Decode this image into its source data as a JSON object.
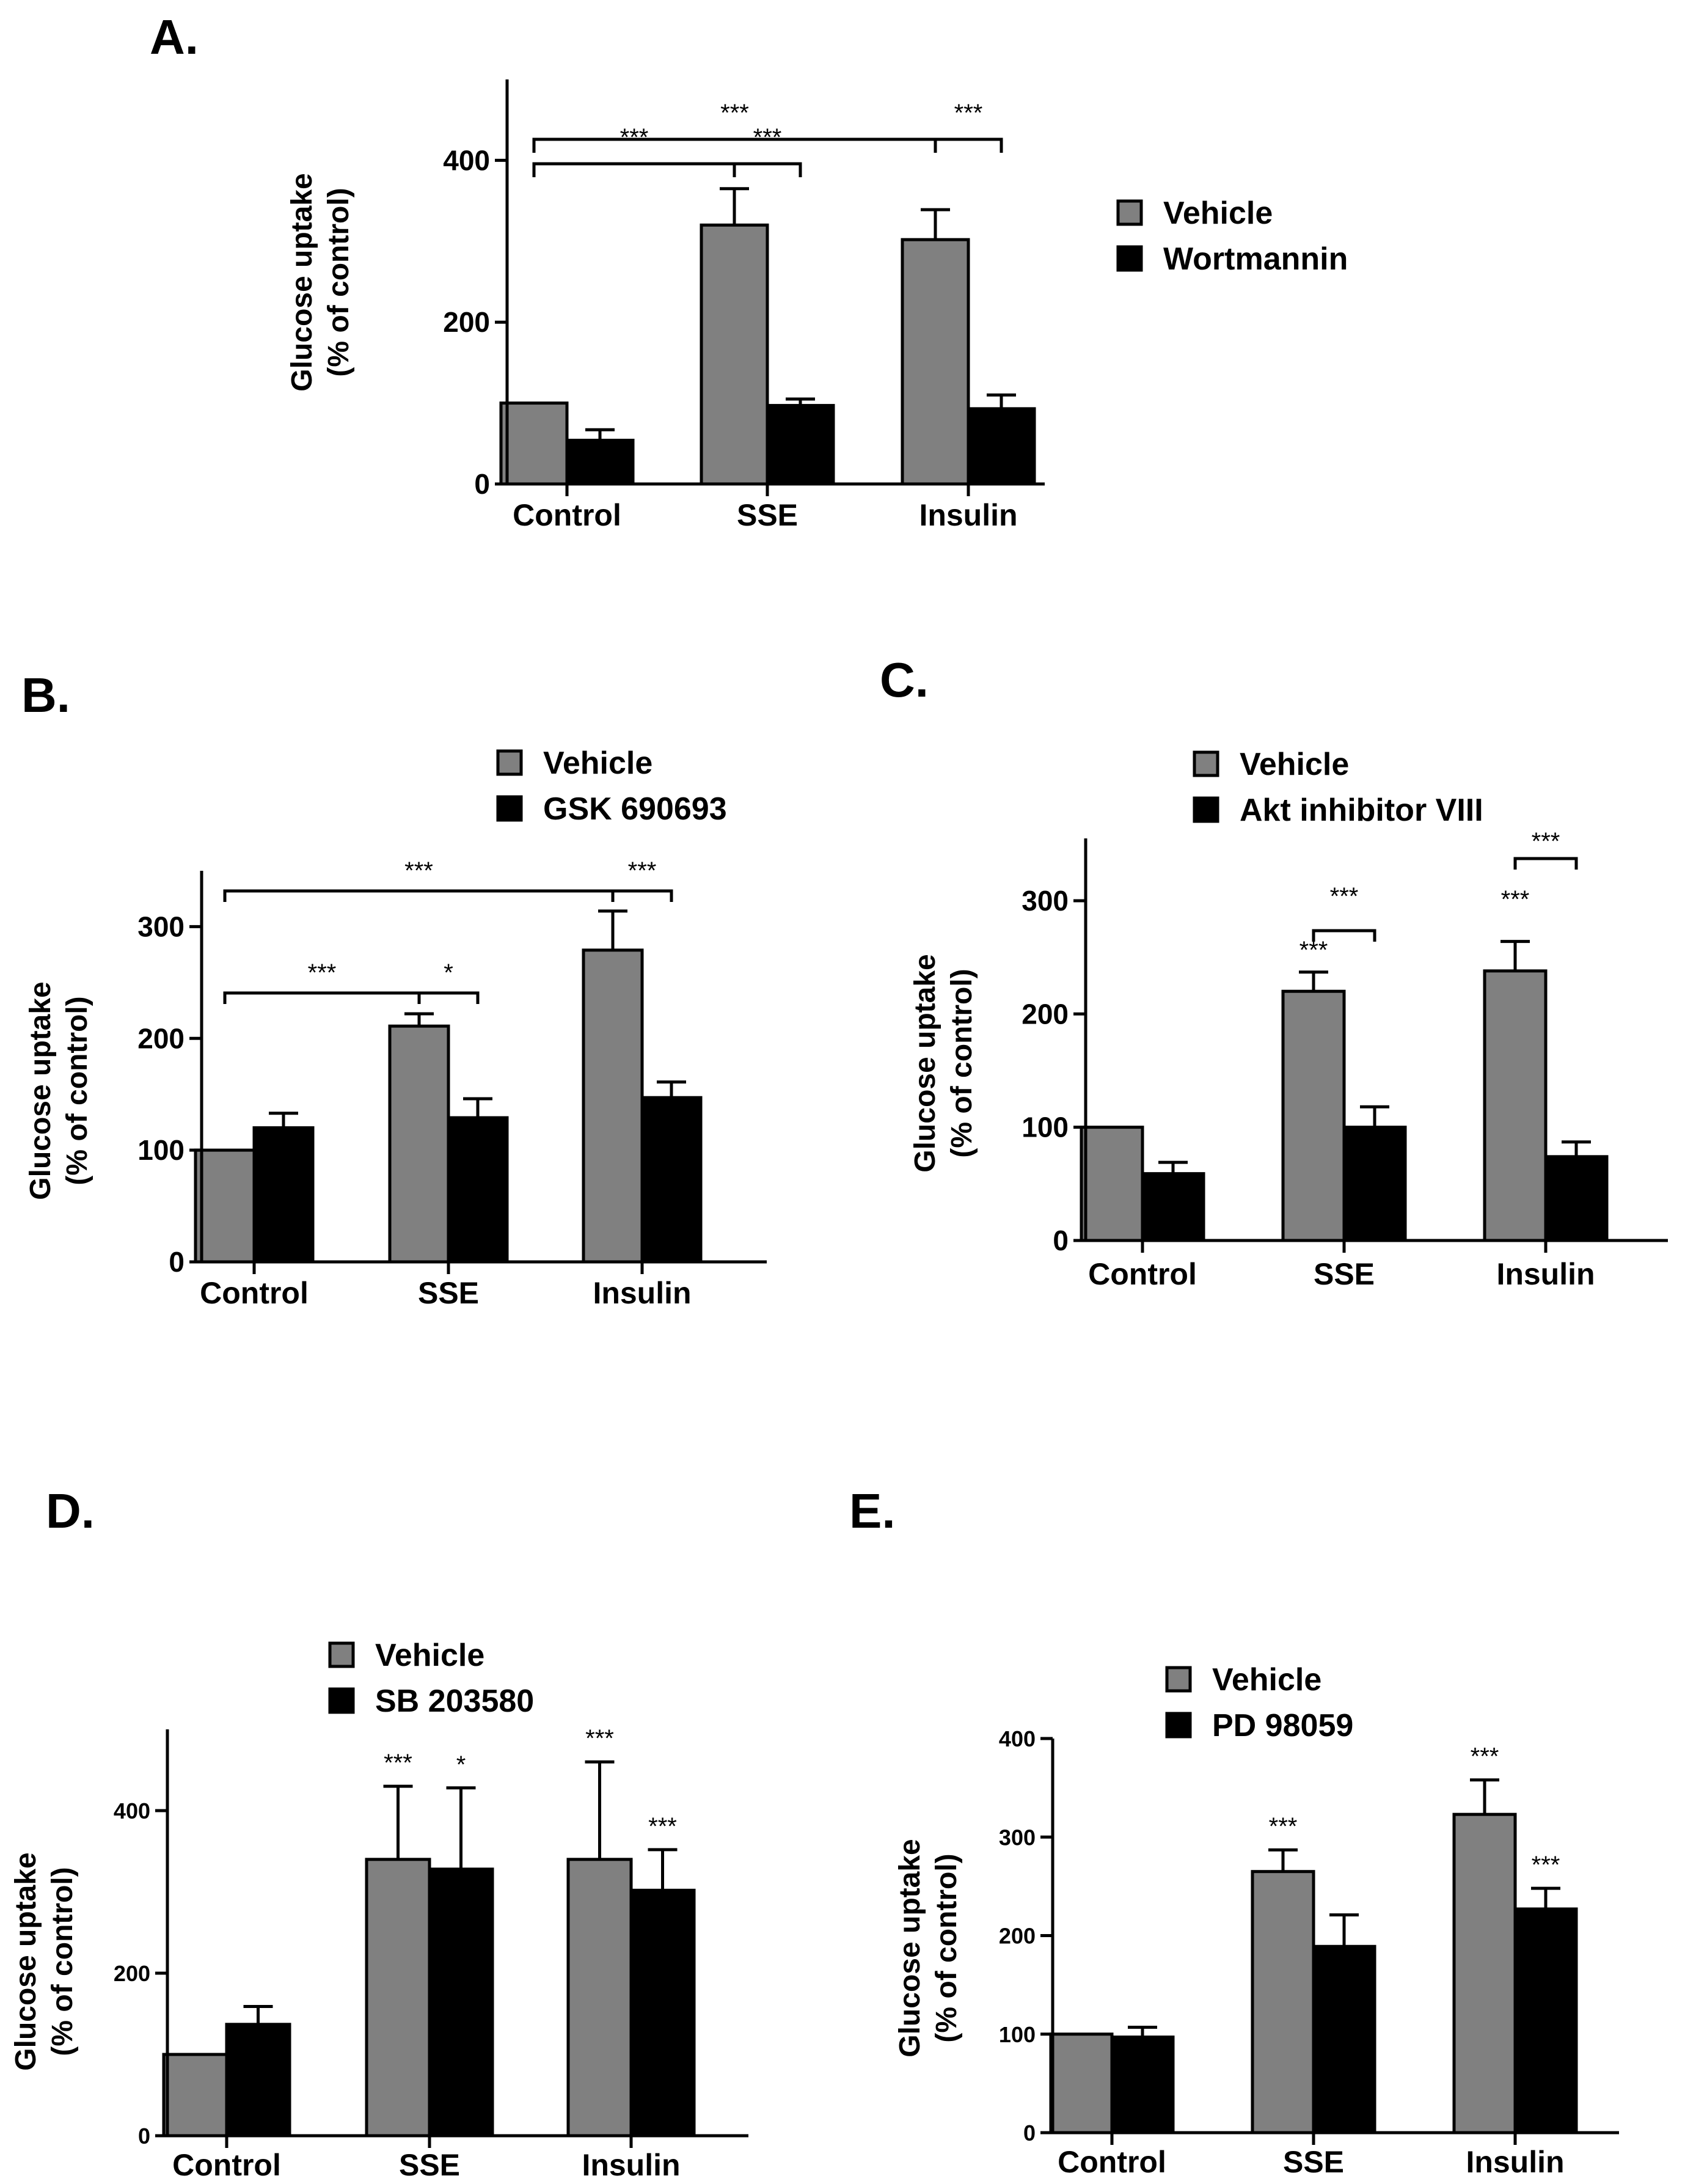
{
  "figure": {
    "colors": {
      "vehicle": "#808080",
      "inhibitor": "#000000",
      "axis": "#000000"
    }
  },
  "chart_data": [
    {
      "type": "bar",
      "panel": "A.",
      "categories": [
        "Control",
        "SSE",
        "Insulin"
      ],
      "series": [
        {
          "name": "Vehicle",
          "values": [
            100,
            320,
            302
          ],
          "errors": [
            0,
            45,
            37
          ]
        },
        {
          "name": "Wortmannin",
          "values": [
            54,
            97,
            93
          ],
          "errors": [
            13,
            8,
            17
          ]
        }
      ],
      "ylabel": "Glucose uptake",
      "ylabel2": "(% of control)",
      "ylim": [
        0,
        500
      ],
      "yticks": [
        0,
        200,
        400
      ],
      "legend": "right",
      "annotations": [
        {
          "label": "***",
          "from": "Control.Vehicle",
          "to": "SSE.Vehicle"
        },
        {
          "label": "***",
          "from": "SSE.Vehicle",
          "to": "SSE.Wortmannin"
        },
        {
          "label": "***",
          "from": "Control.Vehicle",
          "to": "Insulin.Vehicle"
        },
        {
          "label": "***",
          "from": "Insulin.Vehicle",
          "to": "Insulin.Wortmannin"
        }
      ]
    },
    {
      "type": "bar",
      "panel": "B.",
      "categories": [
        "Control",
        "SSE",
        "Insulin"
      ],
      "series": [
        {
          "name": "Vehicle",
          "values": [
            100,
            211,
            279
          ],
          "errors": [
            0,
            11,
            35
          ]
        },
        {
          "name": "GSK 690693",
          "values": [
            120,
            129,
            147
          ],
          "errors": [
            13,
            17,
            14
          ]
        }
      ],
      "ylabel": "Glucose uptake",
      "ylabel2": "(% of control)",
      "ylim": [
        0,
        350
      ],
      "yticks": [
        0,
        100,
        200,
        300
      ],
      "legend": "top",
      "annotations": [
        {
          "label": "***",
          "from": "Control.Vehicle",
          "to": "SSE.Vehicle"
        },
        {
          "label": "*",
          "from": "SSE.Vehicle",
          "to": "SSE.GSK 690693"
        },
        {
          "label": "***",
          "from": "Control.Vehicle",
          "to": "Insulin.Vehicle"
        },
        {
          "label": "***",
          "from": "Insulin.Vehicle",
          "to": "Insulin.GSK 690693"
        }
      ]
    },
    {
      "type": "bar",
      "panel": "C.",
      "categories": [
        "Control",
        "SSE",
        "Insulin"
      ],
      "series": [
        {
          "name": "Vehicle",
          "values": [
            100,
            220,
            238
          ],
          "errors": [
            0,
            17,
            26
          ]
        },
        {
          "name": "Akt inhibitor VIII",
          "values": [
            59,
            100,
            74
          ],
          "errors": [
            10,
            18,
            13
          ]
        }
      ],
      "ylabel": "Glucose uptake",
      "ylabel2": "(% of control)",
      "ylim": [
        0,
        355
      ],
      "yticks": [
        0,
        100,
        200,
        300
      ],
      "legend": "top",
      "annotations": [
        {
          "label": "***",
          "over": "SSE.Vehicle"
        },
        {
          "label": "***",
          "over": "Insulin.Vehicle"
        },
        {
          "label": "***",
          "from": "SSE.Vehicle",
          "to": "SSE.Akt inhibitor VIII"
        },
        {
          "label": "***",
          "from": "Insulin.Vehicle",
          "to": "Insulin.Akt inhibitor VIII"
        }
      ]
    },
    {
      "type": "bar",
      "panel": "D.",
      "categories": [
        "Control",
        "SSE",
        "Insulin"
      ],
      "series": [
        {
          "name": "Vehicle",
          "values": [
            100,
            340,
            340
          ],
          "errors": [
            0,
            90,
            120
          ]
        },
        {
          "name": "SB 203580",
          "values": [
            137,
            328,
            302
          ],
          "errors": [
            22,
            100,
            50
          ]
        }
      ],
      "ylabel": "Glucose uptake",
      "ylabel2": "(% of control)",
      "ylim": [
        0,
        500
      ],
      "yticks": [
        0,
        200,
        400
      ],
      "legend": "top",
      "annotations": [
        {
          "label": "***",
          "over": "SSE.Vehicle"
        },
        {
          "label": "*",
          "over": "SSE.SB 203580"
        },
        {
          "label": "***",
          "over": "Insulin.Vehicle"
        },
        {
          "label": "***",
          "over": "Insulin.SB 203580"
        }
      ]
    },
    {
      "type": "bar",
      "panel": "E.",
      "categories": [
        "Control",
        "SSE",
        "Insulin"
      ],
      "series": [
        {
          "name": "Vehicle",
          "values": [
            100,
            265,
            323
          ],
          "errors": [
            0,
            22,
            35
          ]
        },
        {
          "name": "PD 98059",
          "values": [
            97,
            189,
            227
          ],
          "errors": [
            10,
            32,
            21
          ]
        }
      ],
      "ylabel": "Glucose uptake",
      "ylabel2": "(% of control)",
      "ylim": [
        0,
        400
      ],
      "yticks": [
        0,
        100,
        200,
        300,
        400
      ],
      "legend": "top",
      "annotations": [
        {
          "label": "***",
          "over": "SSE.Vehicle"
        },
        {
          "label": "***",
          "over": "Insulin.Vehicle"
        },
        {
          "label": "***",
          "over": "Insulin.PD 98059"
        }
      ]
    }
  ]
}
